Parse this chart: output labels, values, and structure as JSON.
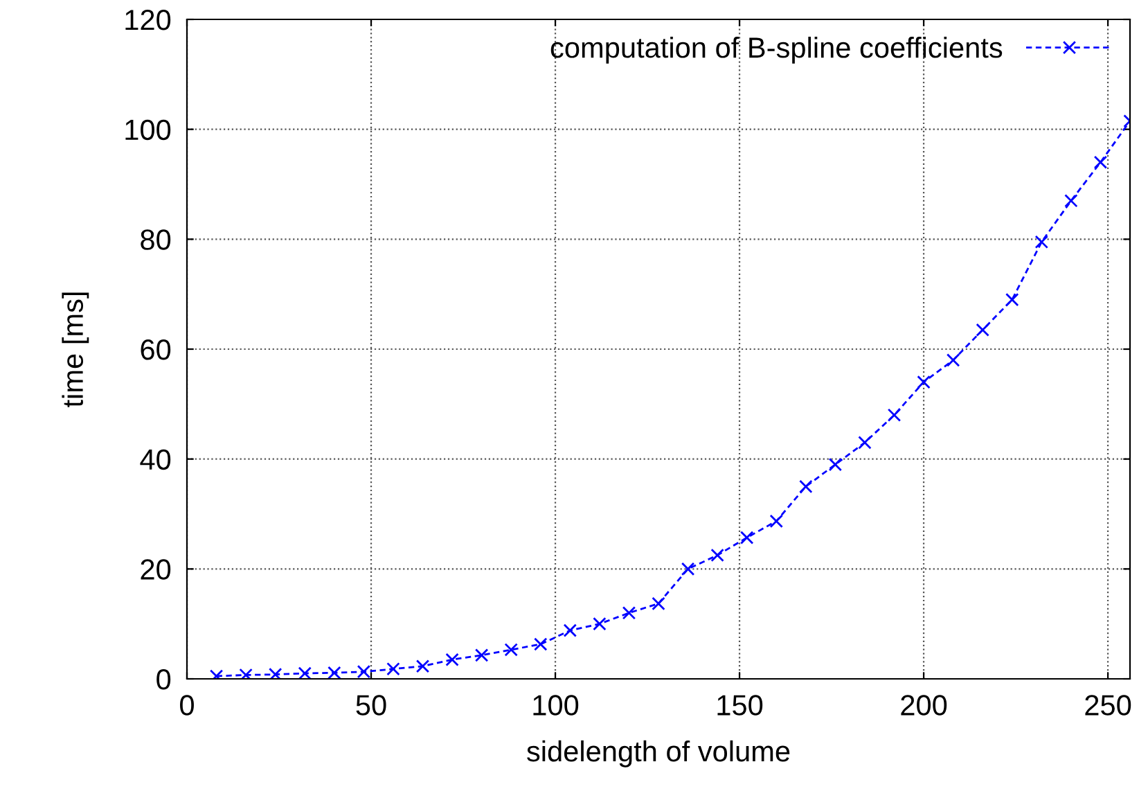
{
  "chart_data": {
    "type": "line",
    "xlabel": "sidelength of volume",
    "ylabel": "time [ms]",
    "x": [
      8,
      16,
      24,
      32,
      40,
      48,
      56,
      64,
      72,
      80,
      88,
      96,
      104,
      112,
      120,
      128,
      136,
      144,
      152,
      160,
      168,
      176,
      184,
      192,
      200,
      208,
      216,
      224,
      232,
      240,
      248,
      256
    ],
    "series": [
      {
        "name": "computation of B-spline coefficients",
        "color": "#0000ff",
        "values": [
          0.5,
          0.7,
          0.8,
          1.0,
          1.1,
          1.3,
          1.8,
          2.3,
          3.5,
          4.3,
          5.3,
          6.3,
          8.8,
          10,
          12,
          13.7,
          20,
          22.5,
          25.7,
          28.7,
          35,
          39,
          43,
          48,
          54,
          58,
          63.5,
          69,
          79.5,
          87,
          94,
          101.5
        ]
      }
    ],
    "xlim": [
      0,
      256
    ],
    "ylim": [
      0,
      120
    ],
    "xticks": [
      0,
      50,
      100,
      150,
      200,
      250
    ],
    "yticks": [
      0,
      20,
      40,
      60,
      80,
      100,
      120
    ],
    "grid": true,
    "legend": "top right",
    "marker": "cross",
    "line_style": "dashed"
  }
}
